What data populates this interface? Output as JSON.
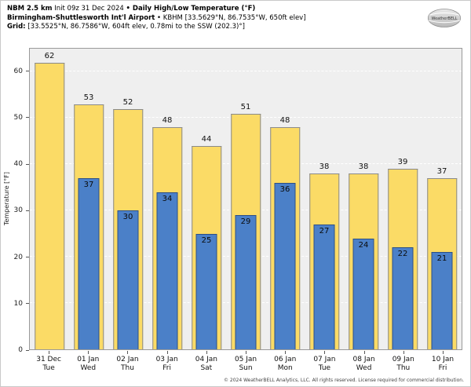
{
  "header": {
    "line1": {
      "model": "NBM 2.5 km",
      "init": " Init 09z 31 Dec 2024 ",
      "product": "• Daily High/Low Temperature (°F)"
    },
    "line2": {
      "station": "Birmingham-Shuttlesworth Int'l Airport",
      "details": " • KBHM [33.5629°N, 86.7535°W, 650ft elev]"
    },
    "line3": {
      "label": "Grid:",
      "details": " [33.5525°N, 86.7586°W, 604ft elev, 0.78mi to the SSW (202.3)°]"
    }
  },
  "logo": {
    "text": "WeatherBELL"
  },
  "footer": "© 2024 WeatherBELL Analytics, LLC. All rights reserved. License required for commercial distribution.",
  "chart_data": {
    "type": "bar",
    "title": "NBM 2.5 km Daily High/Low Temperature (°F) — KBHM",
    "categories": [
      {
        "date": "31 Dec",
        "day": "Tue"
      },
      {
        "date": "01 Jan",
        "day": "Wed"
      },
      {
        "date": "02 Jan",
        "day": "Thu"
      },
      {
        "date": "03 Jan",
        "day": "Fri"
      },
      {
        "date": "04 Jan",
        "day": "Sat"
      },
      {
        "date": "05 Jan",
        "day": "Sun"
      },
      {
        "date": "06 Jan",
        "day": "Mon"
      },
      {
        "date": "07 Jan",
        "day": "Tue"
      },
      {
        "date": "08 Jan",
        "day": "Wed"
      },
      {
        "date": "09 Jan",
        "day": "Thu"
      },
      {
        "date": "10 Jan",
        "day": "Fri"
      }
    ],
    "series": [
      {
        "name": "High",
        "color": "#fbdb66",
        "values": [
          62,
          53,
          52,
          48,
          44,
          51,
          48,
          38,
          38,
          39,
          37
        ]
      },
      {
        "name": "Low",
        "color": "#4b80c8",
        "values": [
          null,
          37,
          30,
          34,
          25,
          29,
          36,
          27,
          24,
          22,
          21
        ]
      }
    ],
    "xlabel": "",
    "ylabel": "Temperature [°F]",
    "ylim": [
      0,
      65
    ],
    "yticks": [
      0,
      10,
      20,
      30,
      40,
      50,
      60
    ],
    "grid": true,
    "legend_position": "none"
  }
}
